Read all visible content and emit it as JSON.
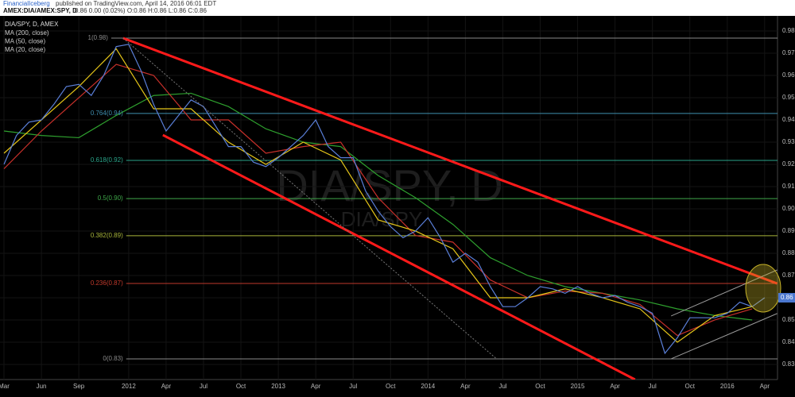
{
  "header": {
    "author": "FinancialIceberg",
    "published": "published on TradingView.com, April 14, 2016 06:01 EDT",
    "symbol": "AMEX:DIA/AMEX:SPY, D",
    "quote": "0.86 0.00 (0.02%) O:0.86 H:0.86 L:0.86 C:0.86"
  },
  "chart_data": {
    "type": "line",
    "title": "DIA/SPY, D, AMEX",
    "watermark": "DIA/SPY, D",
    "watermark_sub": "DIA/SPY",
    "xlim": [
      -10.32,
      52.03
    ],
    "ylim": [
      0.8232,
      0.9868
    ],
    "grid": true,
    "last_value": 0.86,
    "last_color": "#4c78d0",
    "xticks": [
      {
        "value": -10,
        "label": "Mar"
      },
      {
        "value": -7,
        "label": "Jun"
      },
      {
        "value": -4,
        "label": "Sep"
      },
      {
        "value": 0,
        "label": "2012"
      },
      {
        "value": 3,
        "label": "Apr"
      },
      {
        "value": 6,
        "label": "Jul"
      },
      {
        "value": 9,
        "label": "Oct"
      },
      {
        "value": 12,
        "label": "2013"
      },
      {
        "value": 15,
        "label": "Apr"
      },
      {
        "value": 18,
        "label": "Jul"
      },
      {
        "value": 21,
        "label": "Oct"
      },
      {
        "value": 24,
        "label": "2014"
      },
      {
        "value": 27,
        "label": "Apr"
      },
      {
        "value": 30,
        "label": "Jul"
      },
      {
        "value": 33,
        "label": "Oct"
      },
      {
        "value": 36,
        "label": "2015"
      },
      {
        "value": 39,
        "label": "Apr"
      },
      {
        "value": 42,
        "label": "Jul"
      },
      {
        "value": 45,
        "label": "Oct"
      },
      {
        "value": 48,
        "label": "2016"
      },
      {
        "value": 51,
        "label": "Apr"
      }
    ],
    "yticks": [
      0.83,
      0.84,
      0.85,
      0.86,
      0.87,
      0.88,
      0.89,
      {
        "value": 0.9,
        "label": "0.90"
      },
      0.91,
      0.92,
      0.93,
      0.94,
      0.95,
      0.96,
      0.97,
      0.98
    ],
    "series": [
      {
        "name": "MA (200, close)",
        "color": "#2ea02e",
        "x": [
          -10,
          -7,
          -4,
          -1,
          2,
          5,
          8,
          11,
          14,
          17,
          20,
          23,
          26,
          29,
          32,
          35,
          38,
          41,
          44,
          47,
          50
        ],
        "values": [
          0.935,
          0.933,
          0.932,
          0.942,
          0.951,
          0.952,
          0.946,
          0.936,
          0.93,
          0.928,
          0.915,
          0.905,
          0.893,
          0.878,
          0.87,
          0.865,
          0.862,
          0.859,
          0.855,
          0.852,
          0.85
        ]
      },
      {
        "name": "MA (50, close)",
        "color": "#c8302a",
        "x": [
          -10,
          -7,
          -4,
          -1,
          2,
          5,
          8,
          11,
          14,
          17,
          20,
          23,
          26,
          29,
          32,
          35,
          38,
          41,
          44,
          47,
          50
        ],
        "values": [
          0.918,
          0.935,
          0.95,
          0.965,
          0.96,
          0.94,
          0.94,
          0.925,
          0.928,
          0.93,
          0.905,
          0.888,
          0.885,
          0.868,
          0.86,
          0.863,
          0.862,
          0.857,
          0.843,
          0.85,
          0.855
        ]
      },
      {
        "name": "MA (20, close)",
        "color": "#e6c619",
        "x": [
          -10,
          -7,
          -4,
          -1,
          2,
          5,
          8,
          11,
          14,
          17,
          20,
          23,
          26,
          29,
          32,
          35,
          38,
          41,
          44,
          47,
          50
        ],
        "values": [
          0.925,
          0.94,
          0.955,
          0.972,
          0.945,
          0.945,
          0.93,
          0.92,
          0.93,
          0.922,
          0.895,
          0.89,
          0.882,
          0.86,
          0.86,
          0.864,
          0.86,
          0.855,
          0.84,
          0.852,
          0.856
        ]
      },
      {
        "name": "DIA/SPY",
        "color": "#5a7fd8",
        "x": [
          -10,
          -9,
          -8,
          -7,
          -6,
          -5,
          -4,
          -3,
          -2,
          -1,
          0,
          1,
          2,
          3,
          4,
          5,
          6,
          7,
          8,
          9,
          10,
          11,
          12,
          13,
          14,
          15,
          16,
          17,
          18,
          19,
          20,
          21,
          22,
          23,
          24,
          25,
          26,
          27,
          28,
          29,
          30,
          31,
          32,
          33,
          34,
          35,
          36,
          37,
          38,
          39,
          40,
          41,
          42,
          43,
          44,
          45,
          46,
          47,
          48,
          49,
          50,
          51
        ],
        "values": [
          0.92,
          0.933,
          0.939,
          0.94,
          0.947,
          0.955,
          0.956,
          0.951,
          0.96,
          0.973,
          0.974,
          0.962,
          0.947,
          0.935,
          0.942,
          0.949,
          0.946,
          0.937,
          0.928,
          0.928,
          0.921,
          0.919,
          0.923,
          0.928,
          0.933,
          0.94,
          0.928,
          0.923,
          0.923,
          0.908,
          0.899,
          0.892,
          0.887,
          0.89,
          0.896,
          0.887,
          0.876,
          0.88,
          0.876,
          0.865,
          0.856,
          0.856,
          0.86,
          0.865,
          0.864,
          0.862,
          0.865,
          0.862,
          0.86,
          0.861,
          0.858,
          0.856,
          0.853,
          0.835,
          0.842,
          0.851,
          0.851,
          0.851,
          0.853,
          0.858,
          0.856,
          0.86
        ]
      }
    ],
    "fib_levels": [
      {
        "label": "1(0.98)",
        "value": 0.9768,
        "color": "#8a8a8a",
        "start": -1.4
      },
      {
        "label": "0.764(0.94)",
        "value": 0.9429,
        "color": "#3f8fb0",
        "start": -0.2
      },
      {
        "label": "0.618(0.92)",
        "value": 0.9218,
        "color": "#2aa58a",
        "start": -0.2
      },
      {
        "label": "0.5(0.90)",
        "value": 0.9046,
        "color": "#3fa84a",
        "start": -0.2
      },
      {
        "label": "0.382(0.89)",
        "value": 0.8879,
        "color": "#a8b43a",
        "start": -0.2
      },
      {
        "label": "0.236(0.87)",
        "value": 0.8664,
        "color": "#c0392b",
        "start": -0.2
      },
      {
        "label": "0(0.83)",
        "value": 0.8325,
        "color": "#8a8a8a",
        "start": -0.2
      }
    ],
    "trendlines": [
      {
        "color": "#ff1a1a",
        "width": 3,
        "x": [
          -0.45,
          52
        ],
        "values": [
          0.9768,
          0.8664
        ]
      },
      {
        "color": "#ff1a1a",
        "width": 3,
        "x": [
          2.74,
          40.6
        ],
        "values": [
          0.9332,
          0.8232
        ]
      },
      {
        "color": "#777777",
        "width": 1,
        "dash": true,
        "x": [
          -0.45,
          29.5
        ],
        "values": [
          0.9768,
          0.8325
        ]
      },
      {
        "color": "#9a9a9a",
        "width": 1,
        "x": [
          43.5,
          52
        ],
        "values": [
          0.8518,
          0.8725
        ]
      },
      {
        "color": "#9a9a9a",
        "width": 1,
        "x": [
          43.5,
          52
        ],
        "values": [
          0.8325,
          0.8529
        ]
      }
    ]
  }
}
